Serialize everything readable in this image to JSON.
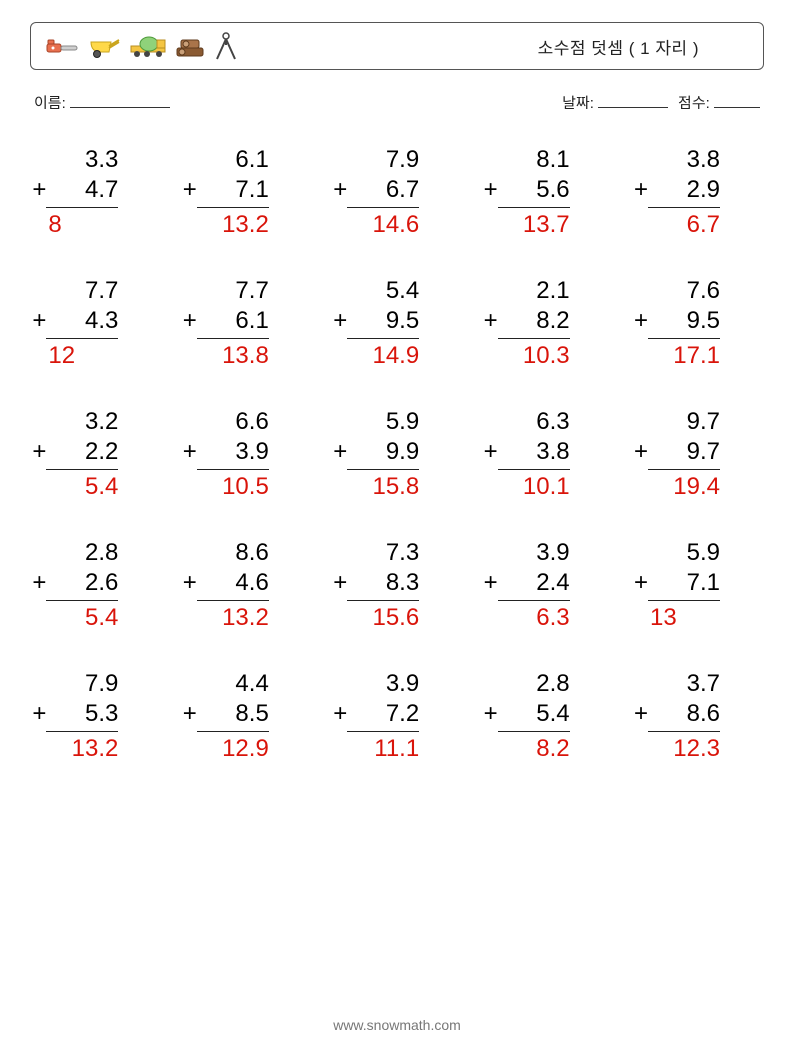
{
  "header": {
    "title": "소수점 덧셈 ( 1 자리 )"
  },
  "meta": {
    "name_label": "이름:",
    "date_label": "날짜:",
    "score_label": "점수:"
  },
  "operator": "+",
  "colors": {
    "answer": "#d9140a",
    "text": "#222222",
    "border": "#555555"
  },
  "problems": [
    [
      {
        "a": "3.3",
        "b": "4.7",
        "ans": "8"
      },
      {
        "a": "6.1",
        "b": "7.1",
        "ans": "13.2"
      },
      {
        "a": "7.9",
        "b": "6.7",
        "ans": "14.6"
      },
      {
        "a": "8.1",
        "b": "5.6",
        "ans": "13.7"
      },
      {
        "a": "3.8",
        "b": "2.9",
        "ans": "6.7"
      }
    ],
    [
      {
        "a": "7.7",
        "b": "4.3",
        "ans": "12"
      },
      {
        "a": "7.7",
        "b": "6.1",
        "ans": "13.8"
      },
      {
        "a": "5.4",
        "b": "9.5",
        "ans": "14.9"
      },
      {
        "a": "2.1",
        "b": "8.2",
        "ans": "10.3"
      },
      {
        "a": "7.6",
        "b": "9.5",
        "ans": "17.1"
      }
    ],
    [
      {
        "a": "3.2",
        "b": "2.2",
        "ans": "5.4"
      },
      {
        "a": "6.6",
        "b": "3.9",
        "ans": "10.5"
      },
      {
        "a": "5.9",
        "b": "9.9",
        "ans": "15.8"
      },
      {
        "a": "6.3",
        "b": "3.8",
        "ans": "10.1"
      },
      {
        "a": "9.7",
        "b": "9.7",
        "ans": "19.4"
      }
    ],
    [
      {
        "a": "2.8",
        "b": "2.6",
        "ans": "5.4"
      },
      {
        "a": "8.6",
        "b": "4.6",
        "ans": "13.2"
      },
      {
        "a": "7.3",
        "b": "8.3",
        "ans": "15.6"
      },
      {
        "a": "3.9",
        "b": "2.4",
        "ans": "6.3"
      },
      {
        "a": "5.9",
        "b": "7.1",
        "ans": "13"
      }
    ],
    [
      {
        "a": "7.9",
        "b": "5.3",
        "ans": "13.2"
      },
      {
        "a": "4.4",
        "b": "8.5",
        "ans": "12.9"
      },
      {
        "a": "3.9",
        "b": "7.2",
        "ans": "11.1"
      },
      {
        "a": "2.8",
        "b": "5.4",
        "ans": "8.2"
      },
      {
        "a": "3.7",
        "b": "8.6",
        "ans": "12.3"
      }
    ]
  ],
  "footer": {
    "url": "www.snowmath.com"
  }
}
